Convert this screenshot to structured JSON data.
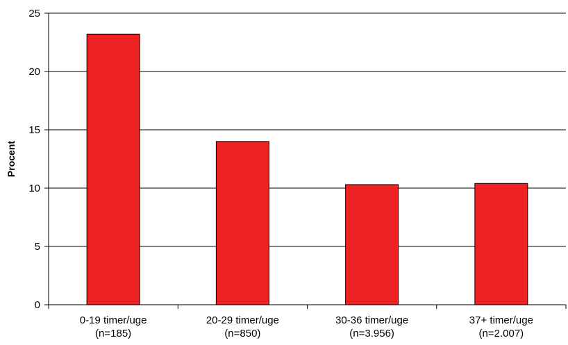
{
  "chart_data": {
    "type": "bar",
    "categories": [
      [
        "0-19 timer/uge",
        "(n=185)"
      ],
      [
        "20-29 timer/uge",
        "(n=850)"
      ],
      [
        "30-36 timer/uge",
        "(n=3.956)"
      ],
      [
        "37+ timer/uge",
        "(n=2.007)"
      ]
    ],
    "values": [
      23.2,
      14.0,
      10.3,
      10.4
    ],
    "ylabel": "Procent",
    "xlabel": "",
    "ylim": [
      0,
      25
    ],
    "yticks": [
      0,
      5,
      10,
      15,
      20,
      25
    ],
    "grid": "horizontal",
    "bar_color": "#ee2222",
    "bar_edge_color": "#000000"
  }
}
